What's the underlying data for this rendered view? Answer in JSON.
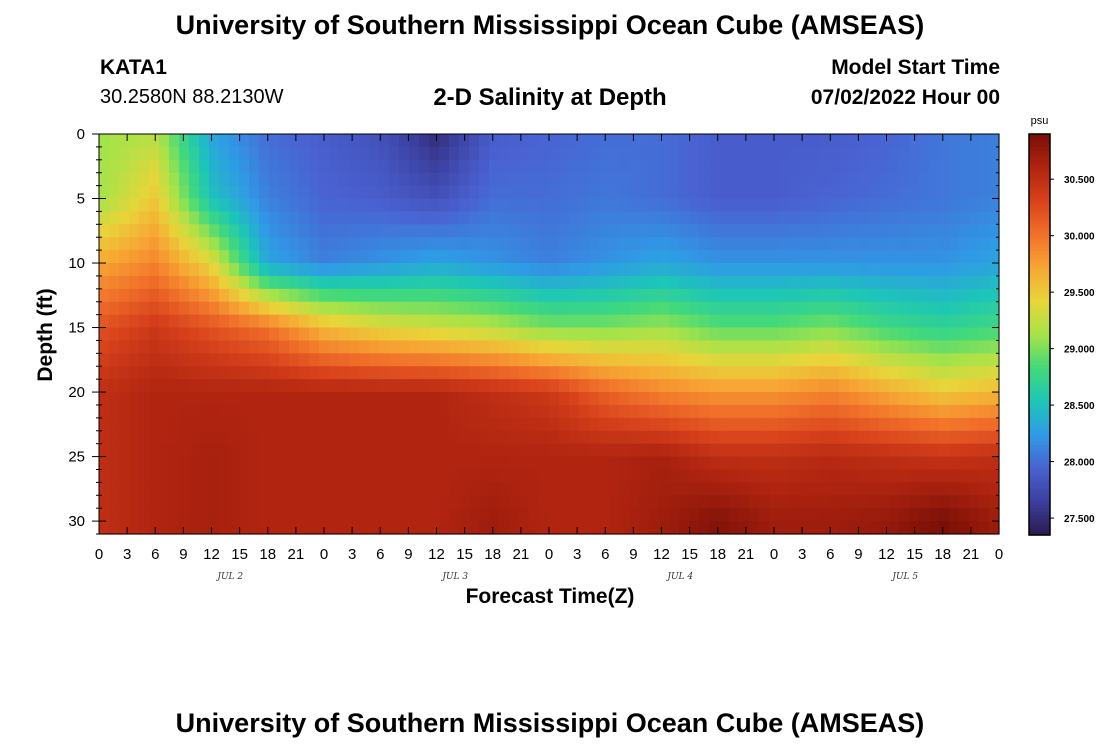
{
  "header": {
    "title": "University of Southern Mississippi Ocean Cube (AMSEAS)",
    "station": "KATA1",
    "coords": "30.2580N  88.2130W",
    "subtitle": "2-D Salinity at Depth",
    "model_start_label": "Model Start Time",
    "model_start_value": "07/02/2022 Hour 00"
  },
  "footer": {
    "title": "University of Southern Mississippi Ocean Cube (AMSEAS)"
  },
  "chart_data": {
    "type": "heatmap",
    "title": "2-D Salinity at Depth",
    "xlabel": "Forecast Time(Z)",
    "ylabel": "Depth (ft)",
    "x_ticks": [
      "0",
      "3",
      "6",
      "9",
      "12",
      "15",
      "18",
      "21",
      "0",
      "3",
      "6",
      "9",
      "12",
      "15",
      "18",
      "21",
      "0",
      "3",
      "6",
      "9",
      "12",
      "15",
      "18",
      "21",
      "0",
      "3",
      "6",
      "9",
      "12",
      "15",
      "18",
      "21",
      "0"
    ],
    "x_range_hours": [
      0,
      96
    ],
    "day_labels": [
      {
        "label": "JUL 2",
        "hour": 14
      },
      {
        "label": "JUL 3",
        "hour": 38
      },
      {
        "label": "JUL 4",
        "hour": 62
      },
      {
        "label": "JUL 5",
        "hour": 86
      }
    ],
    "y_ticks": [
      0,
      5,
      10,
      15,
      20,
      25,
      30
    ],
    "ylim": [
      0,
      31
    ],
    "colorbar": {
      "unit": "psu",
      "ticks": [
        "30.500",
        "30.000",
        "29.500",
        "29.000",
        "28.500",
        "28.000",
        "27.500"
      ],
      "tick_values": [
        30.5,
        30.0,
        29.5,
        29.0,
        28.5,
        28.0,
        27.5
      ],
      "range": [
        27.35,
        30.9
      ],
      "colors": [
        "#2c1a4e",
        "#3b3f9e",
        "#4a62d2",
        "#2f9be6",
        "#1dc6b7",
        "#43d97a",
        "#a7e348",
        "#e8d53a",
        "#f7a634",
        "#f1702a",
        "#d8421c",
        "#b02410",
        "#7a0f07"
      ]
    },
    "time_hours": [
      0,
      6,
      12,
      18,
      24,
      30,
      36,
      42,
      48,
      54,
      60,
      66,
      72,
      78,
      84,
      90,
      96
    ],
    "depth_ft": [
      0,
      5,
      10,
      15,
      20,
      25,
      30
    ],
    "salinity_psu": [
      [
        29.1,
        29.2,
        28.3,
        28.0,
        27.9,
        27.8,
        27.5,
        27.9,
        27.95,
        28.0,
        28.0,
        27.9,
        27.9,
        27.9,
        27.95,
        28.05,
        28.1
      ],
      [
        29.1,
        29.5,
        28.5,
        28.1,
        27.95,
        27.9,
        27.8,
        28.0,
        28.0,
        28.05,
        28.0,
        27.9,
        27.9,
        27.95,
        28.0,
        28.05,
        28.1
      ],
      [
        29.7,
        29.9,
        29.4,
        28.3,
        28.1,
        28.2,
        28.3,
        28.2,
        28.1,
        28.2,
        28.3,
        28.2,
        28.2,
        28.2,
        28.2,
        28.2,
        28.3
      ],
      [
        30.2,
        30.4,
        30.2,
        30.0,
        29.6,
        29.4,
        29.3,
        29.2,
        29.0,
        29.0,
        29.1,
        28.9,
        28.9,
        29.0,
        28.8,
        28.7,
        28.8
      ],
      [
        30.5,
        30.6,
        30.6,
        30.6,
        30.6,
        30.6,
        30.6,
        30.5,
        30.4,
        30.1,
        29.9,
        29.8,
        29.8,
        29.9,
        29.7,
        29.5,
        29.6
      ],
      [
        30.5,
        30.6,
        30.65,
        30.6,
        30.6,
        30.6,
        30.6,
        30.6,
        30.6,
        30.6,
        30.65,
        30.5,
        30.5,
        30.55,
        30.5,
        30.45,
        30.5
      ],
      [
        30.5,
        30.6,
        30.65,
        30.6,
        30.6,
        30.6,
        30.6,
        30.7,
        30.6,
        30.6,
        30.7,
        30.85,
        30.7,
        30.7,
        30.75,
        30.9,
        30.7
      ]
    ]
  }
}
